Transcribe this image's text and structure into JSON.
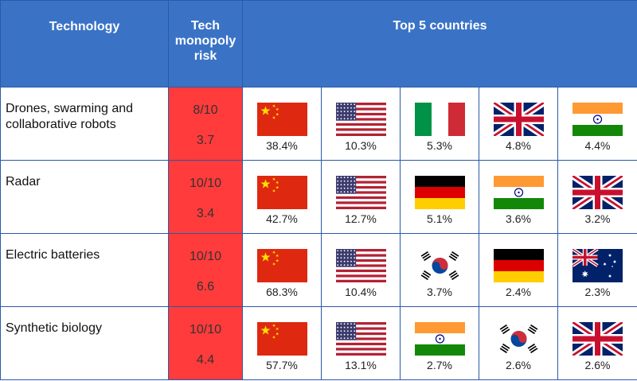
{
  "headers": {
    "technology": "Technology",
    "monopoly_risk": [
      "Tech",
      "monopoly",
      "risk"
    ],
    "top_countries": "Top 5 countries"
  },
  "rows": [
    {
      "technology": "Drones, swarming and collaborative robots",
      "risk_score": "8/10",
      "risk_value": "3.7",
      "countries": [
        {
          "flag": "china",
          "share": "38.4%"
        },
        {
          "flag": "usa",
          "share": "10.3%"
        },
        {
          "flag": "italy",
          "share": "5.3%"
        },
        {
          "flag": "uk",
          "share": "4.8%"
        },
        {
          "flag": "india",
          "share": "4.4%"
        }
      ]
    },
    {
      "technology": "Radar",
      "risk_score": "10/10",
      "risk_value": "3.4",
      "countries": [
        {
          "flag": "china",
          "share": "42.7%"
        },
        {
          "flag": "usa",
          "share": "12.7%"
        },
        {
          "flag": "germany",
          "share": "5.1%"
        },
        {
          "flag": "india",
          "share": "3.6%"
        },
        {
          "flag": "uk",
          "share": "3.2%"
        }
      ]
    },
    {
      "technology": "Electric batteries",
      "risk_score": "10/10",
      "risk_value": "6.6",
      "countries": [
        {
          "flag": "china",
          "share": "68.3%"
        },
        {
          "flag": "usa",
          "share": "10.4%"
        },
        {
          "flag": "south-korea",
          "share": "3.7%"
        },
        {
          "flag": "germany",
          "share": "2.4%"
        },
        {
          "flag": "australia",
          "share": "2.3%"
        }
      ]
    },
    {
      "technology": "Synthetic biology",
      "risk_score": "10/10",
      "risk_value": "4.4",
      "countries": [
        {
          "flag": "china",
          "share": "57.7%"
        },
        {
          "flag": "usa",
          "share": "13.1%"
        },
        {
          "flag": "india",
          "share": "2.7%"
        },
        {
          "flag": "south-korea",
          "share": "2.6%"
        },
        {
          "flag": "uk",
          "share": "2.6%"
        }
      ]
    }
  ],
  "colors": {
    "header_bg": "#3a73c6",
    "risk_bg": "#ff3b3b",
    "border": "#2a5aa8"
  }
}
